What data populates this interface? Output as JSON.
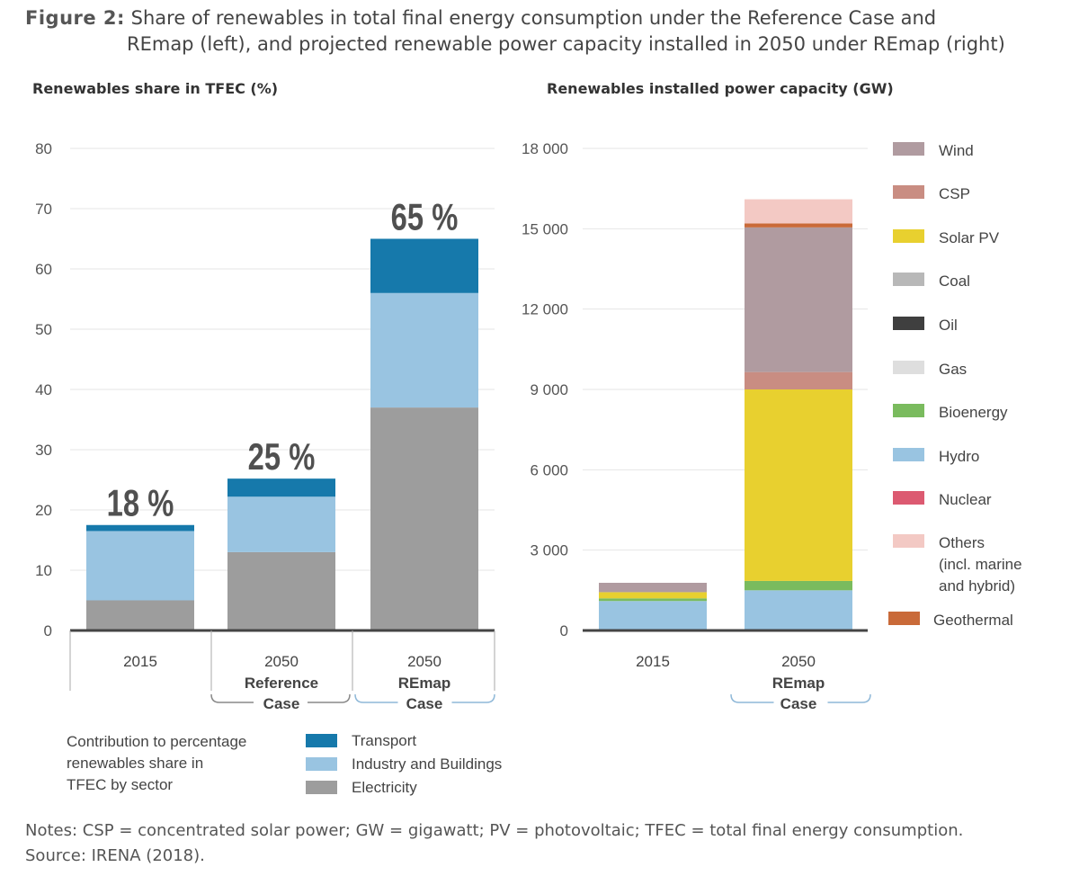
{
  "figure": {
    "label": "Figure 2:",
    "caption_line1": "Share of renewables in total final energy consumption under the Reference Case and",
    "caption_line2": "REmap (left), and projected renewable power capacity installed in 2050 under REmap (right)"
  },
  "notes": {
    "line1": "Notes: CSP = concentrated solar power; GW = gigawatt; PV = photovoltaic; TFEC = total final energy consumption.",
    "line2": "Source: IRENA (2018)."
  },
  "chart_data": [
    {
      "type": "bar",
      "stacked": true,
      "title": "Renewables share in TFEC (%)",
      "ylim": [
        0,
        80
      ],
      "yticks": [
        "0",
        "10",
        "20",
        "30",
        "40",
        "50",
        "60",
        "70",
        "80"
      ],
      "categories": [
        {
          "year": "2015",
          "line2": "",
          "line3": ""
        },
        {
          "year": "2050",
          "line2": "Reference",
          "line3": "Case"
        },
        {
          "year": "2050",
          "line2": "REmap",
          "line3": "Case"
        }
      ],
      "series": [
        {
          "name": "Electricity",
          "color": "#9d9d9d",
          "values": [
            5,
            13,
            37
          ]
        },
        {
          "name": "Industry and Buildings",
          "color": "#99c4e1",
          "values": [
            11.5,
            9.2,
            19
          ]
        },
        {
          "name": "Transport",
          "color": "#1679ab",
          "values": [
            1,
            3,
            9
          ]
        }
      ],
      "total_labels": [
        "18 %",
        "25 %",
        "65 %"
      ],
      "legend_title": [
        "Contribution to percentage",
        "renewables share in",
        "TFEC by sector"
      ],
      "legend_order": [
        "Transport",
        "Industry and Buildings",
        "Electricity"
      ],
      "grid": true
    },
    {
      "type": "bar",
      "stacked": true,
      "title": "Renewables installed power capacity (GW)",
      "ylim": [
        0,
        18000
      ],
      "yticks": [
        "0",
        "3 000",
        "6 000",
        "9 000",
        "12 000",
        "15 000",
        "18 000"
      ],
      "categories": [
        {
          "year": "2015",
          "line2": "",
          "line3": ""
        },
        {
          "year": "2050",
          "line2": "REmap",
          "line3": "Case"
        }
      ],
      "series": [
        {
          "name": "Hydro",
          "color": "#99c4e1",
          "values": [
            1100,
            1500
          ]
        },
        {
          "name": "Bioenergy",
          "color": "#7abb5e",
          "values": [
            100,
            350
          ]
        },
        {
          "name": "Solar PV",
          "color": "#e8d02f",
          "values": [
            230,
            7150
          ]
        },
        {
          "name": "CSP",
          "color": "#c98d82",
          "values": [
            0,
            650
          ]
        },
        {
          "name": "Wind",
          "color": "#b09ba0",
          "values": [
            350,
            5400
          ]
        },
        {
          "name": "Geothermal",
          "color": "#c96a39",
          "values": [
            0,
            150
          ]
        },
        {
          "name": "Others (incl. marine and hybrid)",
          "color": "#f3c9c4",
          "values": [
            0,
            900
          ]
        }
      ],
      "legend": [
        {
          "lines": [
            "Wind"
          ],
          "color": "#b09ba0"
        },
        {
          "lines": [
            "CSP"
          ],
          "color": "#c98d82"
        },
        {
          "lines": [
            "Solar PV"
          ],
          "color": "#e8d02f"
        },
        {
          "lines": [
            "Coal"
          ],
          "color": "#b8b8b8"
        },
        {
          "lines": [
            "Oil"
          ],
          "color": "#3f3f3f"
        },
        {
          "lines": [
            "Gas"
          ],
          "color": "#dedede"
        },
        {
          "lines": [
            "Bioenergy"
          ],
          "color": "#7abb5e"
        },
        {
          "lines": [
            "Hydro"
          ],
          "color": "#99c4e1"
        },
        {
          "lines": [
            "Nuclear"
          ],
          "color": "#dc5a71"
        },
        {
          "lines": [
            "Others",
            "(incl. marine",
            "and hybrid)"
          ],
          "color": "#f3c9c4"
        },
        {
          "lines": [
            "Geothermal"
          ],
          "color": "#c96a39"
        }
      ],
      "legend_placement": "right",
      "grid": true
    }
  ]
}
